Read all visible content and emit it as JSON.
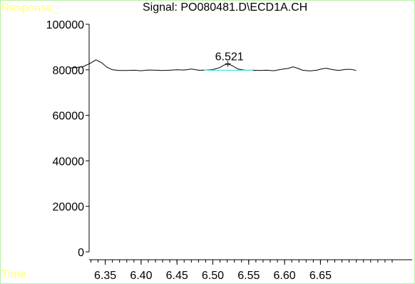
{
  "chart_data": {
    "type": "line",
    "title": "Signal: PO080481.D\\ECD1A.CH",
    "ylabel": "Response_",
    "xlabel": "Time",
    "xlim": [
      6.3,
      6.7
    ],
    "ylim": [
      0,
      100000
    ],
    "x_ticks": [
      "6.35",
      "6.40",
      "6.45",
      "6.50",
      "6.55",
      "6.60",
      "6.65"
    ],
    "y_ticks": [
      "0",
      "20000",
      "40000",
      "60000",
      "80000",
      "100000"
    ],
    "grid": false,
    "colors": {
      "signal": "#000000",
      "baseline": "#40e0e0",
      "corner_text": "#ffff80",
      "frame": "#b8f0a8"
    },
    "series": [
      {
        "x": [
          6.301,
          6.31,
          6.32,
          6.33,
          6.337,
          6.345,
          6.352,
          6.36,
          6.37,
          6.38,
          6.39,
          6.4,
          6.41,
          6.42,
          6.43,
          6.44,
          6.45,
          6.46,
          6.47,
          6.48,
          6.49,
          6.5,
          6.51,
          6.515,
          6.521,
          6.527,
          6.535,
          6.545,
          6.555,
          6.565,
          6.575,
          6.585,
          6.595,
          6.605,
          6.612,
          6.618,
          6.625,
          6.635,
          6.645,
          6.652,
          6.658,
          6.665,
          6.675,
          6.685,
          6.693,
          6.7
        ],
        "values": [
          80800,
          81000,
          81500,
          83000,
          84400,
          83100,
          81200,
          80000,
          79700,
          79700,
          79800,
          79600,
          79900,
          79800,
          79700,
          79800,
          80000,
          79900,
          80300,
          79800,
          79800,
          80100,
          81000,
          82000,
          82600,
          81800,
          80300,
          79800,
          79800,
          79700,
          79800,
          79600,
          80200,
          80600,
          81300,
          80700,
          79800,
          79500,
          79800,
          80400,
          80700,
          80200,
          79700,
          80200,
          80200,
          79700
        ]
      }
    ],
    "peaks": [
      {
        "label": "6.521",
        "x": 6.521,
        "y": 82600,
        "baseline": [
          6.488,
          6.556
        ],
        "baseline_y": 79800
      }
    ]
  }
}
